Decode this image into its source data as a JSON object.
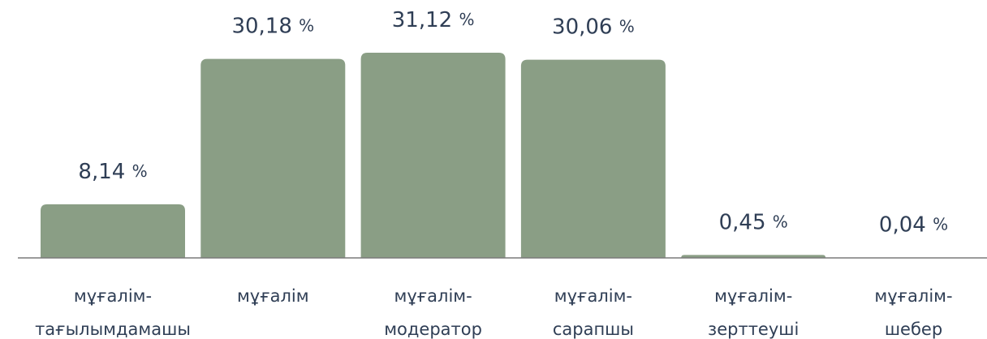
{
  "chart_data": {
    "type": "bar",
    "categories": [
      "мұғалім-тағылымдамашы",
      "мұғалім",
      "мұғалім-модератор",
      "мұғалім-сарапшы",
      "мұғалім-зерттеуші",
      "мұғалім-шебер"
    ],
    "values": [
      8.14,
      30.18,
      31.12,
      30.06,
      0.45,
      0.04
    ],
    "value_labels": [
      "8,14 %",
      "30,18 %",
      "31,12 %",
      "30,06 %",
      "0,45 %",
      "0,04 %"
    ],
    "color": "#8a9e85"
  }
}
